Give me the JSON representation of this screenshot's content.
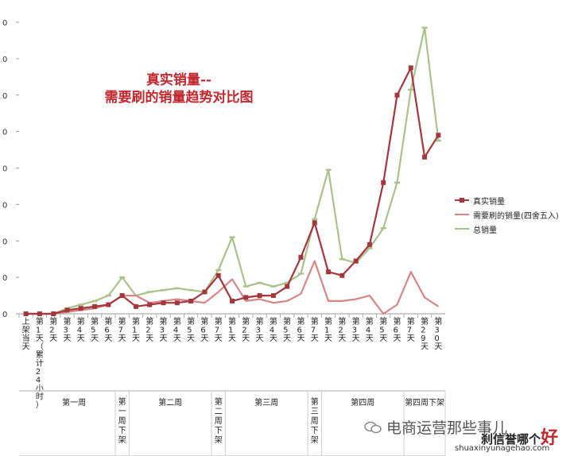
{
  "chart_data": {
    "type": "line",
    "title": [
      "真实销量--",
      "需要刷的销量趋势对比图"
    ],
    "y_tick_labels": [
      "0",
      "0",
      "0",
      "0",
      "0",
      "0",
      "0",
      "0",
      "0"
    ],
    "categories": [
      "上架当天",
      "第1天（累计24小时）",
      "第2天",
      "第3天",
      "第4天",
      "第5天",
      "第6天",
      "第7天",
      "第1天",
      "第2天",
      "第3天",
      "第4天",
      "第5天",
      "第6天",
      "第7天",
      "第1天",
      "第2天",
      "第3天",
      "第4天",
      "第5天",
      "第6天",
      "第7天",
      "第1天",
      "第2天",
      "第3天",
      "第4天",
      "第5天",
      "第6天",
      "第7天",
      "第29天",
      "第30天"
    ],
    "x_tick_labels": [
      "上架当天",
      "第1天（累计24小时）",
      "第2天",
      "第3天",
      "第4天",
      "第5天",
      "第6天",
      "第7天",
      "第1天",
      "第2天",
      "第3天",
      "第4天",
      "第5天",
      "第6天",
      "第7天",
      "第1天",
      "第2天",
      "第3天",
      "第4天",
      "第5天",
      "第6天",
      "第7天",
      "第1天",
      "第2天",
      "第3天",
      "第4天",
      "第5天",
      "第6天",
      "第7天",
      "第29天",
      "第30天"
    ],
    "groups": [
      {
        "label": "第一周",
        "start": 1,
        "end": 6
      },
      {
        "label": "第一周下架",
        "start": 7,
        "end": 7
      },
      {
        "label": "第二周",
        "start": 8,
        "end": 13
      },
      {
        "label": "第二周下架",
        "start": 14,
        "end": 14
      },
      {
        "label": "第三周",
        "start": 15,
        "end": 20
      },
      {
        "label": "第三周下架",
        "start": 21,
        "end": 21
      },
      {
        "label": "第四周",
        "start": 22,
        "end": 27
      },
      {
        "label": "第四周下架",
        "start": 28,
        "end": 30
      }
    ],
    "ylim": [
      0,
      8
    ],
    "series": [
      {
        "name": "真实销量",
        "color": "#a3373c",
        "marker": "square",
        "values": [
          0,
          0,
          0,
          0.1,
          0.15,
          0.2,
          0.25,
          0.5,
          0.2,
          0.25,
          0.3,
          0.3,
          0.35,
          0.6,
          1.05,
          0.35,
          0.45,
          0.5,
          0.5,
          0.75,
          1.55,
          2.5,
          1.15,
          1.05,
          1.45,
          1.9,
          3.6,
          6.0,
          6.75,
          4.3,
          4.9
        ]
      },
      {
        "name": "需要刷的销量(四舍五入)",
        "color": "#d78585",
        "marker": "none",
        "values": [
          0,
          0,
          0,
          0.05,
          0.1,
          0.15,
          0.25,
          0.5,
          0.5,
          0.3,
          0.35,
          0.4,
          0.35,
          0.3,
          0.6,
          0.95,
          0.35,
          0.4,
          0.3,
          0.35,
          0.55,
          1.45,
          0.35,
          0.35,
          0.4,
          0.5,
          0,
          0.25,
          1.15,
          0.45,
          0.2
        ]
      },
      {
        "name": "总销量",
        "color": "#a9c18a",
        "marker": "dash",
        "values": [
          0,
          0,
          0,
          0.15,
          0.25,
          0.35,
          0.5,
          1.0,
          0.5,
          0.6,
          0.65,
          0.7,
          0.65,
          0.6,
          1.2,
          2.1,
          0.75,
          0.85,
          0.75,
          0.85,
          1.1,
          2.6,
          3.95,
          1.5,
          1.4,
          1.8,
          2.35,
          3.6,
          6.15,
          7.85,
          4.75
        ]
      }
    ],
    "grid": false,
    "legend_position": "right"
  },
  "watermark": {
    "text": "电商运营那些事儿"
  },
  "brand": {
    "text_a": "刹信誉哪个",
    "text_b": "好",
    "site": "shuaxinyunagehao.com"
  }
}
